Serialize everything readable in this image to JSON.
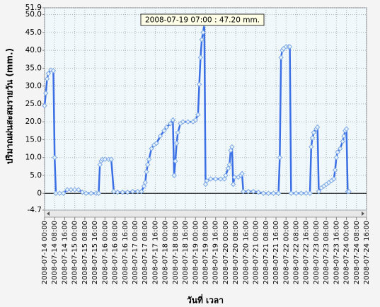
{
  "chart_data": {
    "type": "line",
    "y_label": "ปริมาณฝนสะสมรายวัน (mm.)",
    "x_label": "วันที่ เวลา",
    "annotation": "2008-07-19 07:00 : 47.20 mm.",
    "color": "#3b6fe6",
    "grid": true,
    "x": [
      "2008-07-14 00:00",
      "2008-07-14 01:00",
      "2008-07-14 02:00",
      "2008-07-14 03:00",
      "2008-07-14 05:00",
      "2008-07-14 07:00",
      "2008-07-14 08:00",
      "2008-07-14 09:00",
      "2008-07-14 12:00",
      "2008-07-14 15:00",
      "2008-07-14 18:00",
      "2008-07-14 21:00",
      "2008-07-15 00:00",
      "2008-07-15 03:00",
      "2008-07-15 06:00",
      "2008-07-15 09:00",
      "2008-07-15 13:00",
      "2008-07-15 17:00",
      "2008-07-15 19:00",
      "2008-07-15 20:00",
      "2008-07-15 21:00",
      "2008-07-15 22:00",
      "2008-07-16 00:00",
      "2008-07-16 03:00",
      "2008-07-16 05:00",
      "2008-07-16 07:00",
      "2008-07-16 10:00",
      "2008-07-16 14:00",
      "2008-07-16 18:00",
      "2008-07-16 22:00",
      "2008-07-17 02:00",
      "2008-07-17 05:00",
      "2008-07-17 07:00",
      "2008-07-17 08:00",
      "2008-07-17 09:00",
      "2008-07-17 10:00",
      "2008-07-17 11:00",
      "2008-07-17 13:00",
      "2008-07-17 15:00",
      "2008-07-17 17:00",
      "2008-07-17 20:00",
      "2008-07-17 23:00",
      "2008-07-18 01:00",
      "2008-07-18 04:00",
      "2008-07-18 06:00",
      "2008-07-18 07:00",
      "2008-07-18 08:00",
      "2008-07-18 09:00",
      "2008-07-18 10:00",
      "2008-07-18 12:00",
      "2008-07-18 14:00",
      "2008-07-18 18:00",
      "2008-07-18 22:00",
      "2008-07-19 00:00",
      "2008-07-19 02:00",
      "2008-07-19 03:00",
      "2008-07-19 04:00",
      "2008-07-19 05:00",
      "2008-07-19 06:00",
      "2008-07-19 07:00",
      "2008-07-19 08:00",
      "2008-07-19 09:00",
      "2008-07-19 12:00",
      "2008-07-19 16:00",
      "2008-07-19 20:00",
      "2008-07-19 23:00",
      "2008-07-20 00:00",
      "2008-07-20 02:00",
      "2008-07-20 03:00",
      "2008-07-20 04:00",
      "2008-07-20 05:00",
      "2008-07-20 06:00",
      "2008-07-20 07:00",
      "2008-07-20 10:00",
      "2008-07-20 12:00",
      "2008-07-20 13:00",
      "2008-07-20 14:00",
      "2008-07-20 18:00",
      "2008-07-20 22:00",
      "2008-07-21 02:00",
      "2008-07-21 06:00",
      "2008-07-21 10:00",
      "2008-07-21 14:00",
      "2008-07-21 18:00",
      "2008-07-21 19:00",
      "2008-07-21 20:00",
      "2008-07-21 21:00",
      "2008-07-21 22:00",
      "2008-07-22 00:00",
      "2008-07-22 02:00",
      "2008-07-22 03:00",
      "2008-07-22 04:00",
      "2008-07-22 08:00",
      "2008-07-22 12:00",
      "2008-07-22 16:00",
      "2008-07-22 19:00",
      "2008-07-22 20:00",
      "2008-07-22 21:00",
      "2008-07-22 22:00",
      "2008-07-23 00:00",
      "2008-07-23 01:00",
      "2008-07-23 02:00",
      "2008-07-23 04:00",
      "2008-07-23 06:00",
      "2008-07-23 08:00",
      "2008-07-23 10:00",
      "2008-07-23 12:00",
      "2008-07-23 14:00",
      "2008-07-23 15:00",
      "2008-07-23 16:00",
      "2008-07-23 17:00",
      "2008-07-23 19:00",
      "2008-07-23 21:00",
      "2008-07-23 22:00",
      "2008-07-23 23:00",
      "2008-07-24 00:00",
      "2008-07-24 01:00",
      "2008-07-24 02:00"
    ],
    "values": [
      24.5,
      28,
      32,
      33.5,
      34.5,
      34.3,
      10,
      0,
      0,
      0,
      1,
      1,
      1,
      1,
      0.3,
      0,
      0,
      0,
      0,
      8,
      9,
      9.5,
      9.5,
      9.5,
      9.5,
      0.5,
      0.3,
      0.3,
      0.3,
      0.5,
      0.5,
      0.5,
      2,
      3,
      6,
      8,
      9.5,
      12.5,
      13.5,
      14,
      16,
      17.5,
      18.5,
      19.5,
      20.5,
      5,
      9,
      14,
      17,
      19.5,
      20,
      20,
      20,
      20.5,
      22,
      30.5,
      38,
      43,
      45,
      47.2,
      2.5,
      3.5,
      4,
      4,
      4,
      4,
      5,
      7,
      8,
      12,
      13,
      2.5,
      4.5,
      4.5,
      5,
      5.5,
      0.5,
      0.5,
      0.5,
      0.3,
      0,
      0,
      0,
      0,
      10,
      38,
      40,
      40.5,
      41,
      41,
      41,
      0,
      0,
      0,
      0,
      0,
      13,
      15.5,
      17,
      18,
      18.5,
      0.5,
      1.5,
      2,
      2.5,
      3,
      3.5,
      4,
      6.5,
      10,
      11.5,
      12.5,
      14.5,
      16,
      17.5,
      18,
      0.5,
      0.5
    ],
    "xlim": [
      "2008-07-14 00:00",
      "2008-07-24 16:00"
    ],
    "xticks": [
      "2008-07-14 00:00",
      "2008-07-14 08:00",
      "2008-07-14 16:00",
      "2008-07-15 00:00",
      "2008-07-15 08:00",
      "2008-07-15 16:00",
      "2008-07-16 00:00",
      "2008-07-16 08:00",
      "2008-07-16 16:00",
      "2008-07-17 00:00",
      "2008-07-17 08:00",
      "2008-07-17 16:00",
      "2008-07-18 00:00",
      "2008-07-18 08:00",
      "2008-07-18 16:00",
      "2008-07-19 00:00",
      "2008-07-19 08:00",
      "2008-07-19 16:00",
      "2008-07-20 00:00",
      "2008-07-20 08:00",
      "2008-07-20 16:00",
      "2008-07-21 00:00",
      "2008-07-21 08:00",
      "2008-07-21 16:00",
      "2008-07-22 00:00",
      "2008-07-22 08:00",
      "2008-07-22 16:00",
      "2008-07-23 00:00",
      "2008-07-23 08:00",
      "2008-07-23 16:00",
      "2008-07-24 00:00",
      "2008-07-24 08:00",
      "2008-07-24 16:00"
    ],
    "ylim": [
      -4.7,
      51.9
    ],
    "yticks": [
      -4.7,
      0,
      {
        "value": 5,
        "label": "5.0"
      },
      {
        "value": 10,
        "label": "10.0"
      },
      {
        "value": 15,
        "label": "15.0"
      },
      {
        "value": 20,
        "label": "20.0"
      },
      {
        "value": 25,
        "label": "25.0"
      },
      {
        "value": 30,
        "label": "30.0"
      },
      {
        "value": 35,
        "label": "35.0"
      },
      {
        "value": 40,
        "label": "40.0"
      },
      {
        "value": 45,
        "label": "45.0"
      },
      {
        "value": 50,
        "label": "50.0"
      },
      51.9
    ]
  }
}
